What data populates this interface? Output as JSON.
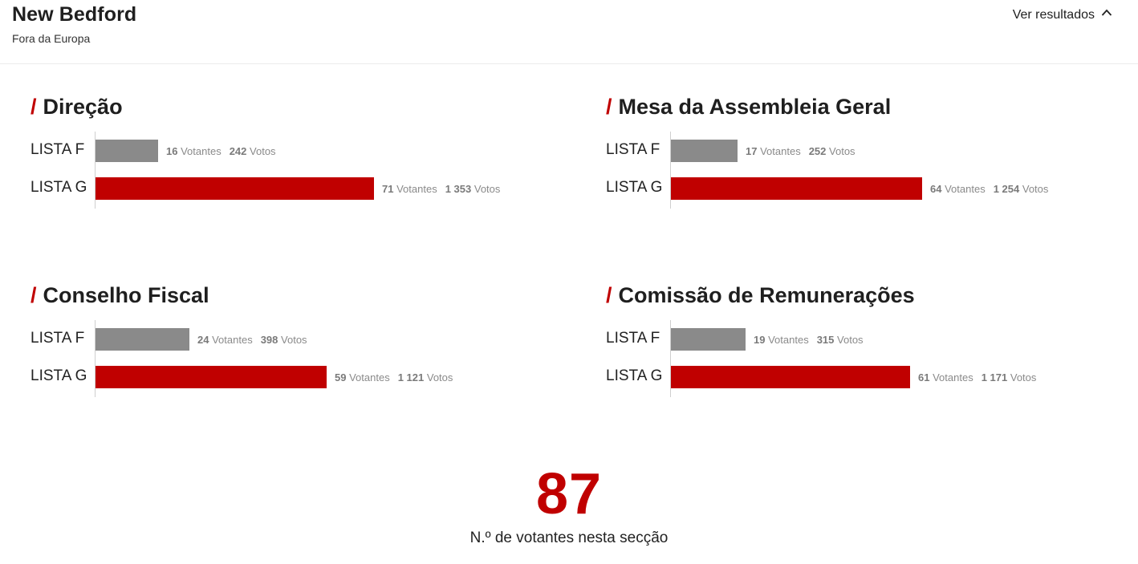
{
  "header": {
    "title": "New Bedford",
    "subtitle": "Fora da Europa",
    "toggle_label": "Ver resultados",
    "toggle_icon": "chevron-up-icon"
  },
  "colors": {
    "accent": "#c00000",
    "lista_f_bar": "#8a8a8a",
    "lista_g_bar": "#c00000"
  },
  "sections": [
    {
      "slash": "/",
      "title": "Direção",
      "rows": [
        {
          "lista": "LISTA F",
          "votantes_num": "16",
          "votantes_label": "Votantes",
          "votos_num": "242",
          "votos_label": "Votos",
          "votantes": 16
        },
        {
          "lista": "LISTA G",
          "votantes_num": "71",
          "votantes_label": "Votantes",
          "votos_num": "1 353",
          "votos_label": "Votos",
          "votantes": 71
        }
      ]
    },
    {
      "slash": "/",
      "title": "Mesa da Assembleia Geral",
      "rows": [
        {
          "lista": "LISTA F",
          "votantes_num": "17",
          "votantes_label": "Votantes",
          "votos_num": "252",
          "votos_label": "Votos",
          "votantes": 17
        },
        {
          "lista": "LISTA G",
          "votantes_num": "64",
          "votantes_label": "Votantes",
          "votos_num": "1 254",
          "votos_label": "Votos",
          "votantes": 64
        }
      ]
    },
    {
      "slash": "/",
      "title": "Conselho Fiscal",
      "rows": [
        {
          "lista": "LISTA F",
          "votantes_num": "24",
          "votantes_label": "Votantes",
          "votos_num": "398",
          "votos_label": "Votos",
          "votantes": 24
        },
        {
          "lista": "LISTA G",
          "votantes_num": "59",
          "votantes_label": "Votantes",
          "votos_num": "1 121",
          "votos_label": "Votos",
          "votantes": 59
        }
      ]
    },
    {
      "slash": "/",
      "title": "Comissão de Remunerações",
      "rows": [
        {
          "lista": "LISTA F",
          "votantes_num": "19",
          "votantes_label": "Votantes",
          "votos_num": "315",
          "votos_label": "Votos",
          "votantes": 19
        },
        {
          "lista": "LISTA G",
          "votantes_num": "61",
          "votantes_label": "Votantes",
          "votos_num": "1 171",
          "votos_label": "Votos",
          "votantes": 61
        }
      ]
    }
  ],
  "total": {
    "value": "87",
    "label": "N.º de votantes nesta secção"
  }
}
